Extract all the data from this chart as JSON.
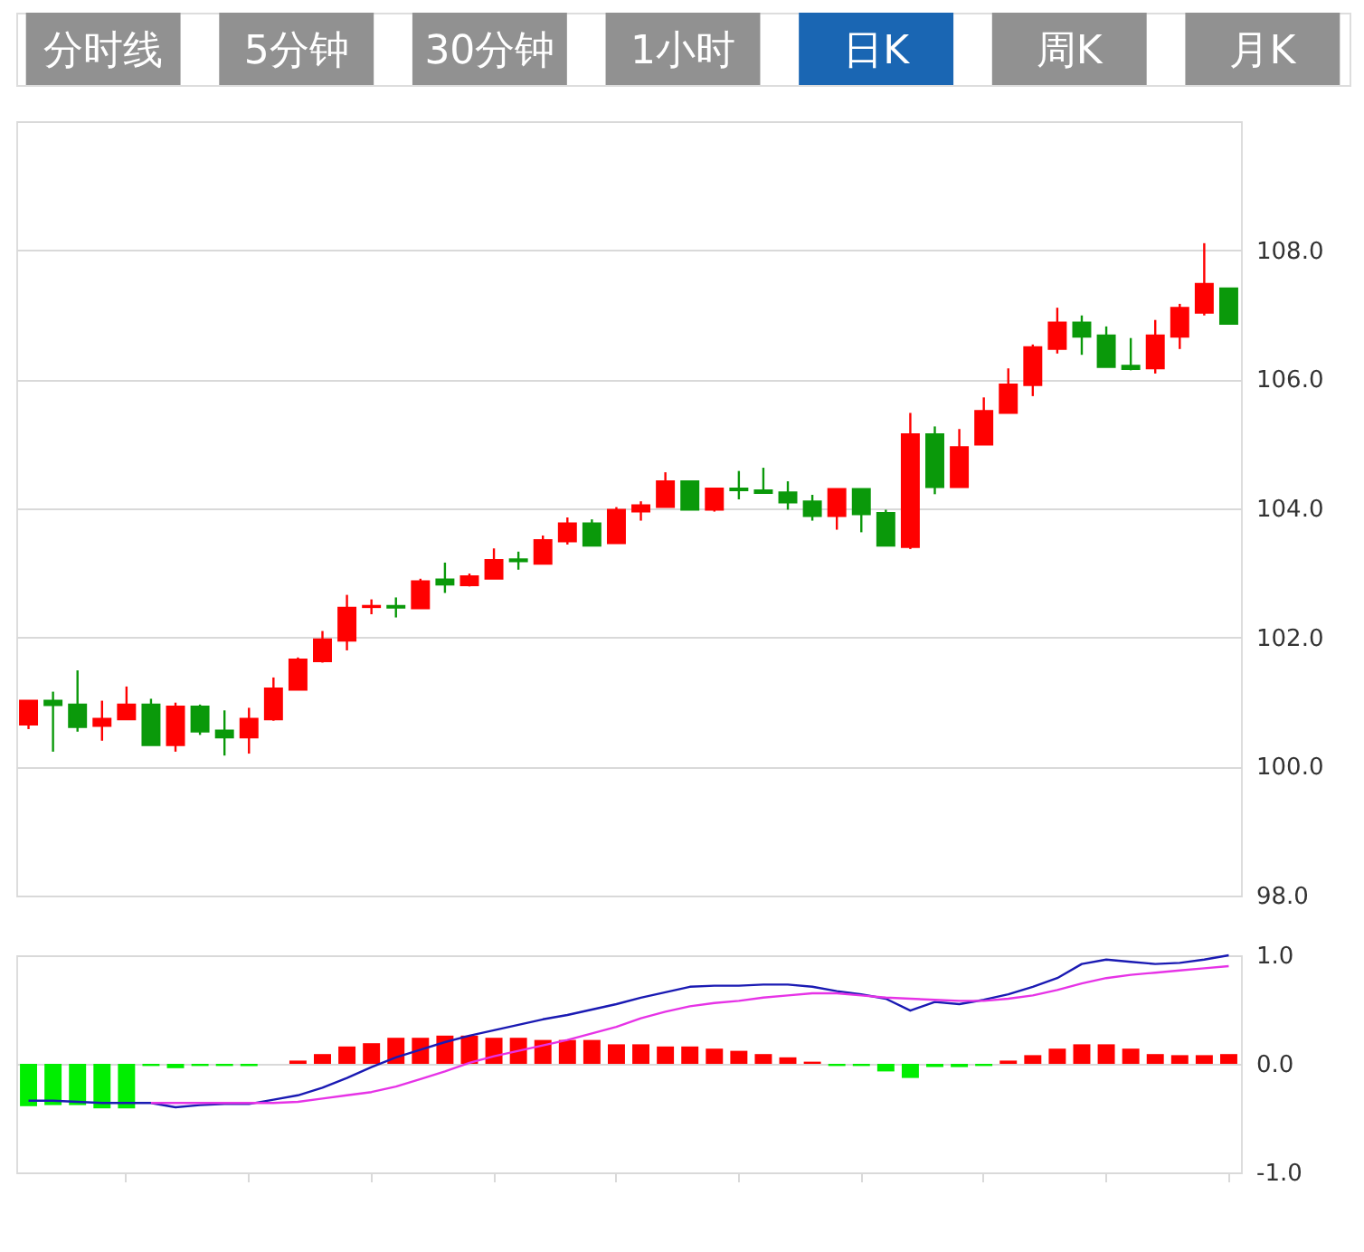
{
  "chart_data": [
    {
      "type": "other",
      "categories": [
        "分时线",
        "5分钟",
        "30分钟",
        "1小时",
        "日K",
        "周K",
        "月K"
      ],
      "colors": [
        "#919191",
        "#919191",
        "#919191",
        "#919191",
        "#1a66b3",
        "#919191",
        "#919191"
      ]
    },
    {
      "type": "candlestick",
      "categories": [
        null,
        null,
        null,
        null,
        null,
        null,
        null,
        null,
        null,
        null,
        null,
        null,
        null,
        null,
        null,
        null,
        null,
        null,
        null,
        null,
        null,
        null,
        null,
        null,
        null,
        null,
        null,
        null,
        null,
        null,
        null,
        null,
        null,
        null,
        null,
        null,
        null,
        null,
        null,
        null,
        null,
        null,
        null,
        null,
        null,
        null,
        null,
        null,
        null,
        null
      ],
      "ohlc": [
        [
          100.65,
          101.02,
          100.58,
          101.02
        ],
        [
          101.02,
          101.16,
          100.23,
          100.95
        ],
        [
          100.96,
          101.49,
          100.54,
          100.61
        ],
        [
          100.63,
          101.02,
          100.4,
          100.74
        ],
        [
          100.73,
          101.24,
          100.73,
          100.96
        ],
        [
          100.96,
          101.05,
          100.33,
          100.33
        ],
        [
          100.33,
          100.99,
          100.23,
          100.93
        ],
        [
          100.93,
          100.96,
          100.49,
          100.54
        ],
        [
          100.56,
          100.87,
          100.17,
          100.45
        ],
        [
          100.45,
          100.91,
          100.2,
          100.74
        ],
        [
          100.73,
          101.38,
          100.71,
          101.21
        ],
        [
          101.19,
          101.69,
          101.19,
          101.66
        ],
        [
          101.63,
          102.1,
          101.61,
          101.97
        ],
        [
          101.95,
          102.66,
          101.8,
          102.46
        ],
        [
          102.47,
          102.59,
          102.36,
          102.49
        ],
        [
          102.49,
          102.62,
          102.31,
          102.46
        ],
        [
          102.45,
          102.91,
          102.45,
          102.87
        ],
        [
          102.9,
          103.16,
          102.69,
          102.82
        ],
        [
          102.81,
          102.99,
          102.79,
          102.95
        ],
        [
          102.91,
          103.38,
          102.91,
          103.2
        ],
        [
          103.21,
          103.33,
          103.05,
          103.18
        ],
        [
          103.14,
          103.58,
          103.14,
          103.51
        ],
        [
          103.49,
          103.86,
          103.44,
          103.77
        ],
        [
          103.77,
          103.83,
          103.42,
          103.42
        ],
        [
          103.46,
          104.02,
          103.46,
          103.98
        ],
        [
          103.95,
          104.11,
          103.81,
          104.05
        ],
        [
          104.02,
          104.56,
          104.02,
          104.42
        ],
        [
          104.42,
          104.42,
          103.98,
          103.98
        ],
        [
          103.98,
          104.31,
          103.95,
          104.31
        ],
        [
          104.31,
          104.58,
          104.14,
          104.28
        ],
        [
          104.28,
          104.63,
          104.24,
          104.24
        ],
        [
          104.25,
          104.42,
          103.98,
          104.09
        ],
        [
          104.11,
          104.21,
          103.81,
          103.88
        ],
        [
          103.88,
          104.3,
          103.67,
          104.3
        ],
        [
          104.3,
          104.3,
          103.63,
          103.91
        ],
        [
          103.93,
          103.98,
          103.42,
          103.42
        ],
        [
          103.4,
          105.48,
          103.37,
          105.15
        ],
        [
          105.15,
          105.27,
          104.22,
          104.33
        ],
        [
          104.33,
          105.23,
          104.33,
          104.95
        ],
        [
          104.99,
          105.72,
          104.99,
          105.51
        ],
        [
          105.48,
          106.17,
          105.48,
          105.92
        ],
        [
          105.91,
          106.54,
          105.74,
          106.5
        ],
        [
          106.47,
          107.11,
          106.4,
          106.88
        ],
        [
          106.88,
          106.99,
          106.38,
          106.66
        ],
        [
          106.68,
          106.82,
          106.19,
          106.19
        ],
        [
          106.21,
          106.64,
          106.14,
          106.16
        ],
        [
          106.17,
          106.92,
          106.09,
          106.68
        ],
        [
          106.66,
          107.17,
          106.47,
          107.11
        ],
        [
          107.03,
          108.11,
          106.99,
          107.48
        ],
        [
          107.41,
          107.41,
          106.85,
          106.86
        ]
      ],
      "colors": [
        "#ff0000",
        "#0a990a",
        "#0a990a",
        "#ff0000",
        "#ff0000",
        "#0a990a",
        "#ff0000",
        "#0a990a",
        "#0a990a",
        "#ff0000",
        "#ff0000",
        "#ff0000",
        "#ff0000",
        "#ff0000",
        "#ff0000",
        "#0a990a",
        "#ff0000",
        "#0a990a",
        "#ff0000",
        "#ff0000",
        "#0a990a",
        "#ff0000",
        "#ff0000",
        "#0a990a",
        "#ff0000",
        "#ff0000",
        "#ff0000",
        "#0a990a",
        "#ff0000",
        "#0a990a",
        "#0a990a",
        "#0a990a",
        "#0a990a",
        "#ff0000",
        "#0a990a",
        "#0a990a",
        "#ff0000",
        "#0a990a",
        "#ff0000",
        "#ff0000",
        "#ff0000",
        "#ff0000",
        "#ff0000",
        "#0a990a",
        "#0a990a",
        "#0a990a",
        "#ff0000",
        "#ff0000",
        "#ff0000",
        "#0a990a"
      ],
      "ylim": [
        98,
        110
      ],
      "yticks": [
        {
          "value": 98,
          "label": "98.0"
        },
        {
          "value": 100,
          "label": "100.0"
        },
        {
          "value": 102,
          "label": "102.0"
        },
        {
          "value": 104,
          "label": "104.0"
        },
        {
          "value": 106,
          "label": "106.0"
        },
        {
          "value": 108,
          "label": "108.0"
        },
        {
          "value": 110,
          "label": null
        }
      ],
      "grid": "y",
      "tick_labels": "y"
    },
    {
      "type": "bar",
      "categories": [
        null,
        null,
        null,
        null,
        null,
        null,
        null,
        null,
        null,
        null,
        null,
        null,
        null,
        null,
        null,
        null,
        null,
        null,
        null,
        null,
        null,
        null,
        null,
        null,
        null,
        null,
        null,
        null,
        null,
        null,
        null,
        null,
        null,
        null,
        null,
        null,
        null,
        null,
        null,
        null,
        null,
        null,
        null,
        null,
        null,
        null,
        null,
        null,
        null,
        null
      ],
      "series": [
        {
          "type": "bar",
          "values": [
            -0.39,
            -0.38,
            -0.38,
            -0.41,
            -0.41,
            -0.02,
            -0.04,
            -0.02,
            -0.02,
            -0.02,
            0,
            0.03,
            0.09,
            0.16,
            0.19,
            0.24,
            0.24,
            0.26,
            0.26,
            0.24,
            0.24,
            0.22,
            0.22,
            0.22,
            0.18,
            0.18,
            0.16,
            0.16,
            0.14,
            0.12,
            0.09,
            0.06,
            0.02,
            -0.02,
            -0.02,
            -0.07,
            -0.13,
            -0.03,
            -0.03,
            -0.02,
            0.03,
            0.08,
            0.14,
            0.18,
            0.18,
            0.14,
            0.09,
            0.08,
            0.08,
            0.09
          ],
          "colors": [
            "#00ee00",
            "#00ee00",
            "#00ee00",
            "#00ee00",
            "#00ee00",
            "#00ee00",
            "#00ee00",
            "#00ee00",
            "#00ee00",
            "#00ee00",
            "#ff0000",
            "#ff0000",
            "#ff0000",
            "#ff0000",
            "#ff0000",
            "#ff0000",
            "#ff0000",
            "#ff0000",
            "#ff0000",
            "#ff0000",
            "#ff0000",
            "#ff0000",
            "#ff0000",
            "#ff0000",
            "#ff0000",
            "#ff0000",
            "#ff0000",
            "#ff0000",
            "#ff0000",
            "#ff0000",
            "#ff0000",
            "#ff0000",
            "#ff0000",
            "#00ee00",
            "#00ee00",
            "#00ee00",
            "#00ee00",
            "#00ee00",
            "#00ee00",
            "#00ee00",
            "#ff0000",
            "#ff0000",
            "#ff0000",
            "#ff0000",
            "#ff0000",
            "#ff0000",
            "#ff0000",
            "#ff0000",
            "#ff0000",
            "#ff0000"
          ]
        },
        {
          "type": "line",
          "color": "#1a1ab3",
          "values": [
            -0.34,
            -0.34,
            -0.35,
            -0.36,
            -0.36,
            -0.36,
            -0.4,
            -0.38,
            -0.37,
            -0.37,
            -0.33,
            -0.29,
            -0.22,
            -0.13,
            -0.03,
            0.06,
            0.13,
            0.2,
            0.26,
            0.31,
            0.36,
            0.41,
            0.45,
            0.5,
            0.55,
            0.61,
            0.66,
            0.71,
            0.72,
            0.72,
            0.73,
            0.73,
            0.71,
            0.67,
            0.64,
            0.6,
            0.49,
            0.57,
            0.55,
            0.59,
            0.64,
            0.71,
            0.79,
            0.92,
            0.96,
            0.94,
            0.92,
            0.93,
            0.96,
            1.0
          ]
        },
        {
          "type": "line",
          "color": "#e633e6",
          "values": [
            null,
            null,
            null,
            null,
            null,
            -0.36,
            -0.36,
            -0.36,
            -0.36,
            -0.36,
            -0.36,
            -0.35,
            -0.32,
            -0.29,
            -0.26,
            -0.21,
            -0.14,
            -0.07,
            0.01,
            0.07,
            0.12,
            0.17,
            0.22,
            0.28,
            0.34,
            0.42,
            0.48,
            0.53,
            0.56,
            0.58,
            0.61,
            0.63,
            0.65,
            0.65,
            0.63,
            0.61,
            0.6,
            0.59,
            0.58,
            0.58,
            0.6,
            0.63,
            0.68,
            0.74,
            0.79,
            0.82,
            0.84,
            0.86,
            0.88,
            0.9
          ]
        }
      ],
      "ylim": [
        -1,
        1
      ],
      "yticks": [
        {
          "value": -1,
          "label": "-1.0"
        },
        {
          "value": 0,
          "label": "0.0"
        },
        {
          "value": 1,
          "label": "1.0"
        }
      ],
      "grid": "y",
      "tick_labels": "y"
    }
  ]
}
